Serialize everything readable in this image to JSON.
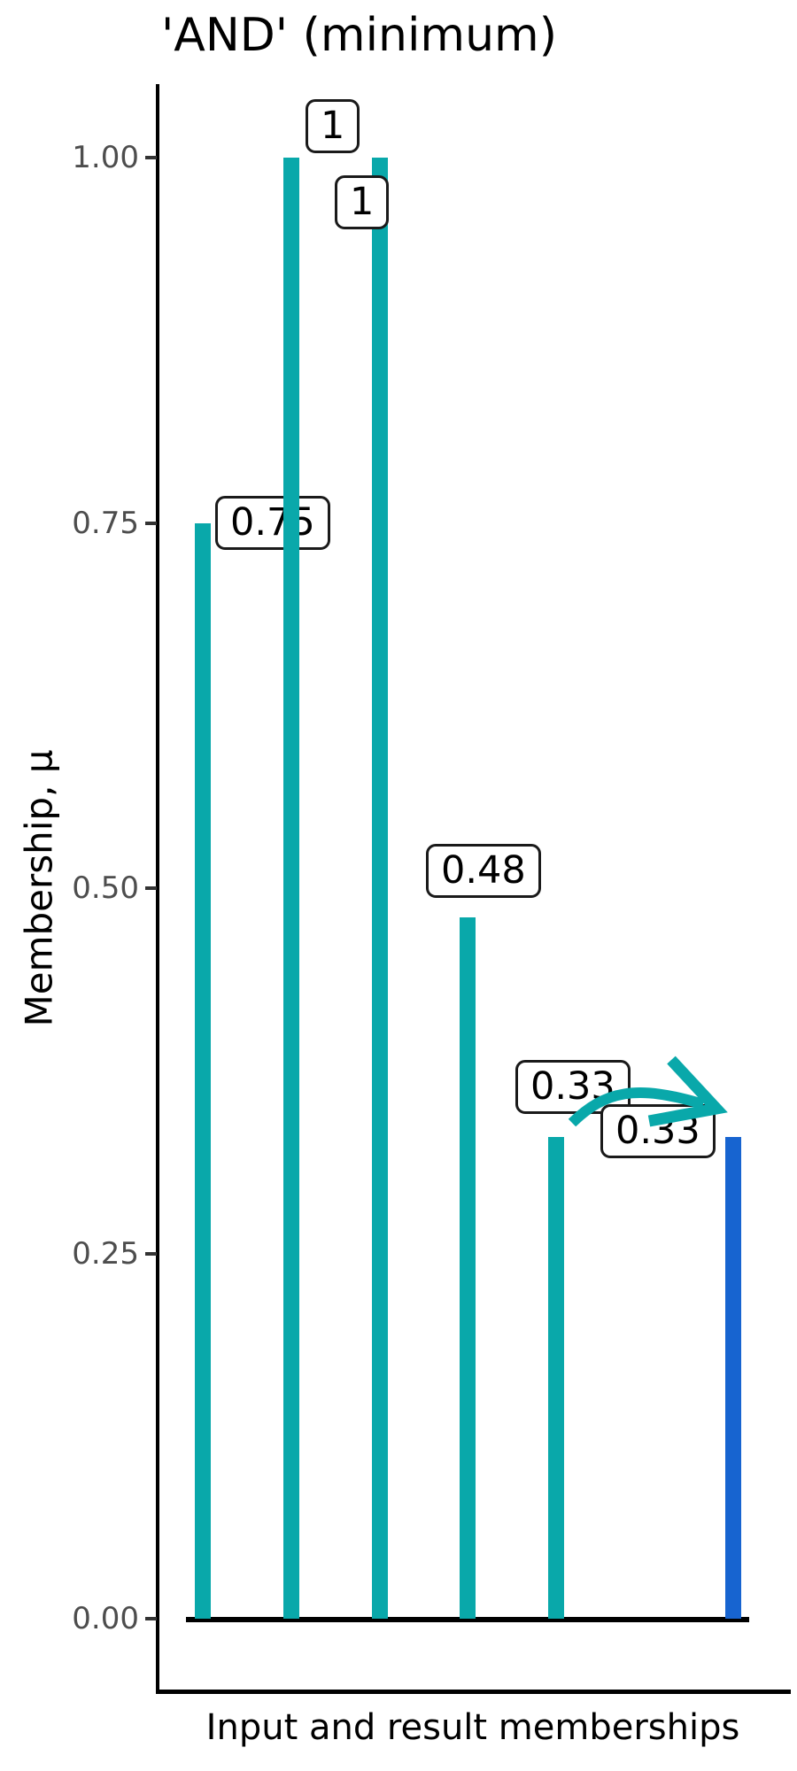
{
  "colors": {
    "input_bar": "#09a8aa",
    "result_bar": "#1764d0",
    "arrow": "#09a8aa",
    "tick_text": "#4d4d4d",
    "axis_line": "#000000",
    "label_box_border": "#1a1a1a",
    "label_box_bg": "#ffffff",
    "background": "#ffffff"
  },
  "chart_data": {
    "type": "bar",
    "title": "'AND' (minimum)",
    "xlabel": "Input and result memberships",
    "ylabel": "Membership, μ",
    "ylim": [
      0,
      1
    ],
    "grid": "off",
    "legend": "none",
    "yticks": [
      {
        "value": 1.0,
        "label": "1.00"
      },
      {
        "value": 0.75,
        "label": "0.75"
      },
      {
        "value": 0.5,
        "label": "0.50"
      },
      {
        "value": 0.25,
        "label": "0.25"
      },
      {
        "value": 0.0,
        "label": "0.00"
      }
    ],
    "bars": [
      {
        "value": 0.75,
        "label": "0.75",
        "group": "input"
      },
      {
        "value": 1,
        "label": "1",
        "group": "input"
      },
      {
        "value": 1,
        "label": "1",
        "group": "input"
      },
      {
        "value": 0.48,
        "label": "0.48",
        "group": "input"
      },
      {
        "value": 0.33,
        "label": "0.33",
        "group": "input"
      },
      {
        "value": 0.33,
        "label": "0.33",
        "group": "result"
      }
    ],
    "annotation": {
      "type": "curved-arrow",
      "from_bar_index": 4,
      "to_bar_index": 5,
      "description": "minimum input membership carried to result bar"
    }
  }
}
